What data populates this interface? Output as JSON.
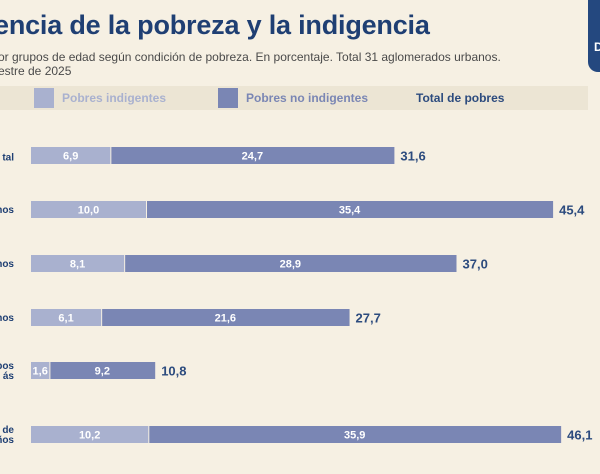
{
  "header": {
    "title": "encia de la pobreza y la indigencia",
    "subtitle_line1": "or grupos de edad según condición de pobreza. En porcentaje. Total 31 aglomerados urbanos.",
    "subtitle_line2": "estre de 2025"
  },
  "legend": {
    "indigentes": "Pobres indigentes",
    "no_indigentes": "Pobres no indigentes",
    "total": "Total de pobres"
  },
  "colors": {
    "indigentes": "#a9b1cf",
    "no_indigentes": "#7a86b4",
    "total_text": "#2c4b7e",
    "title": "#1f3f73",
    "background": "#f6f0e3"
  },
  "chart_data": {
    "type": "bar",
    "orientation": "horizontal",
    "stacked": true,
    "title": "encia de la pobreza y la indigencia",
    "categories": [
      "tal",
      "nos",
      "nos",
      "nos",
      "pos|ás",
      "n de|años"
    ],
    "series": [
      {
        "name": "Pobres indigentes",
        "values": [
          6.9,
          10.0,
          8.1,
          6.1,
          1.6,
          10.2
        ]
      },
      {
        "name": "Pobres no indigentes",
        "values": [
          24.7,
          35.4,
          28.9,
          21.6,
          9.2,
          35.9
        ]
      }
    ],
    "totals_name": "Total de pobres",
    "totals": [
      31.6,
      45.4,
      37.0,
      27.7,
      10.8,
      46.1
    ],
    "segment_labels_1": [
      "6,9",
      "10,0",
      "8,1",
      "6,1",
      "1,6",
      "10,2"
    ],
    "segment_labels_2": [
      "24,7",
      "35,4",
      "28,9",
      "21,6",
      "9,2",
      "35,9"
    ],
    "total_labels": [
      "31,6",
      "45,4",
      "37,0",
      "27,7",
      "10,8",
      "46,1"
    ],
    "legend_position": "top",
    "grid": false
  }
}
